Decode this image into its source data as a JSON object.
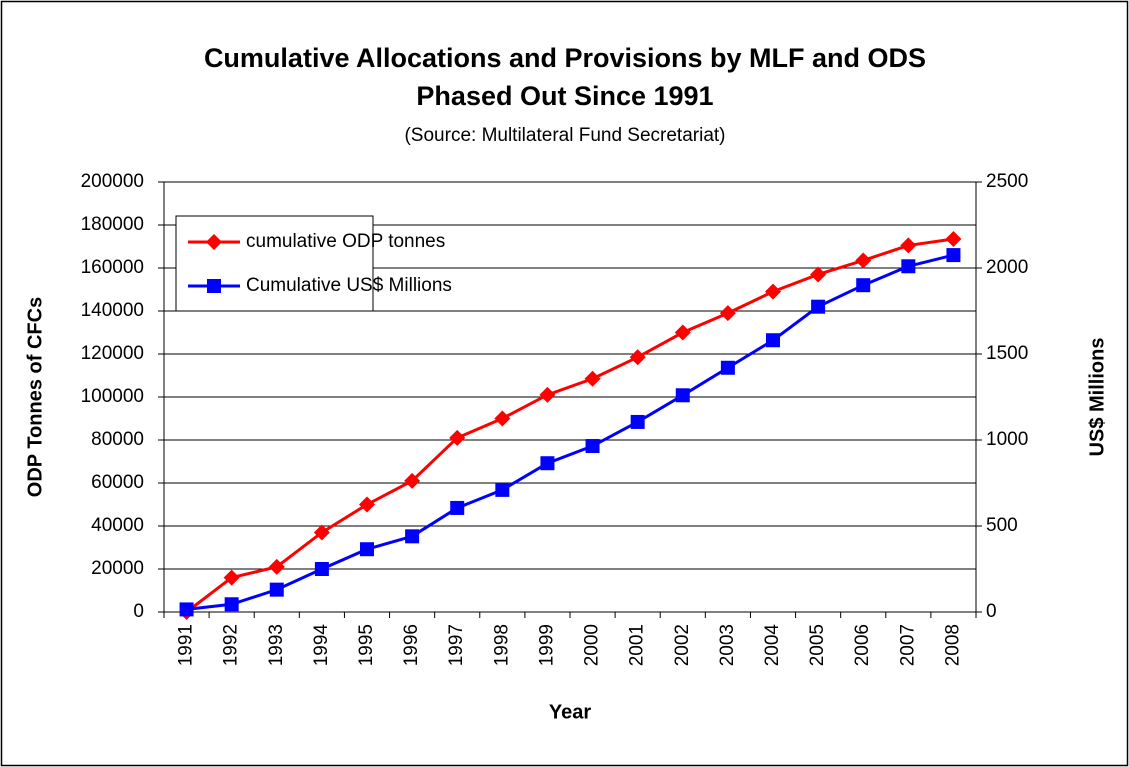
{
  "chart_data": {
    "type": "line",
    "title": [
      "Cumulative Allocations and Provisions by MLF and ODS",
      "Phased Out Since 1991"
    ],
    "subtitle": "(Source: Multilateral Fund Secretariat)",
    "x_label": "Year",
    "y_label": "ODP Tonnes of CFCs",
    "y2_label": "US$ Millions",
    "categories": [
      "1991",
      "1992",
      "1993",
      "1994",
      "1995",
      "1996",
      "1997",
      "1998",
      "1999",
      "2000",
      "2001",
      "2002",
      "2003",
      "2004",
      "2005",
      "2006",
      "2007",
      "2008"
    ],
    "series": [
      {
        "name": "cumulative ODP tonnes",
        "color": "#ff0000",
        "marker": "diamond",
        "values": [
          0,
          16000,
          21000,
          37000,
          50000,
          61000,
          81000,
          90000,
          101000,
          108500,
          118500,
          130000,
          139000,
          149000,
          157000,
          163500,
          170500,
          173500
        ]
      },
      {
        "name": "Cumulative US$ Millions",
        "color": "#0000ff",
        "marker": "square",
        "axis": "y2",
        "values": [
          15,
          45,
          130,
          250,
          365,
          440,
          605,
          710,
          865,
          965,
          1105,
          1260,
          1420,
          1580,
          1775,
          1900,
          2010,
          2075
        ]
      }
    ],
    "ylim": [
      0,
      200000
    ],
    "yticks": [
      0,
      20000,
      40000,
      60000,
      80000,
      100000,
      120000,
      140000,
      160000,
      180000,
      200000
    ],
    "y2lim": [
      0,
      2500
    ],
    "y2ticks": [
      0,
      500,
      1000,
      1500,
      2000,
      2500
    ],
    "grid": true,
    "legend": "upper left"
  }
}
